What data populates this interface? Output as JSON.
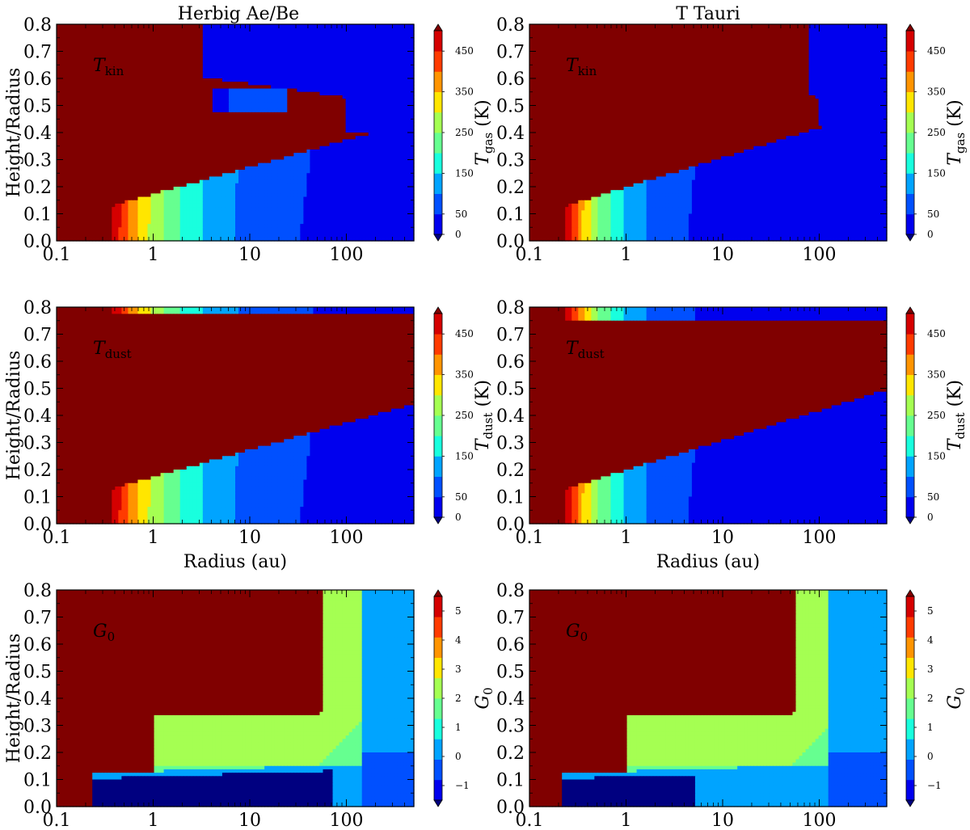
{
  "figure": {
    "column_titles": [
      "Herbig Ae/Be",
      "T Tauri"
    ],
    "row_labels": [
      "Height/Radius",
      "Height/Radius",
      "Height/Radius"
    ],
    "xlabel": "Radius (au)",
    "x_ticks": [
      "0.1",
      "1",
      "10",
      "100"
    ],
    "y_ticks": [
      "0.0",
      "0.1",
      "0.2",
      "0.3",
      "0.4",
      "0.5",
      "0.6",
      "0.7",
      "0.8"
    ]
  },
  "colors": {
    "jet_levels": [
      "#000080",
      "#0000ee",
      "#0050ff",
      "#00a4ff",
      "#19ffde",
      "#66ff90",
      "#a5ff52",
      "#ffe600",
      "#ff9400",
      "#ff3b00",
      "#d50000",
      "#800000"
    ]
  },
  "chart_data": [
    {
      "type": "heatmap",
      "panel": "herbig-tkin",
      "column": "Herbig Ae/Be",
      "annotation_base": "T",
      "annotation_sub": "kin",
      "xlim": [
        0.1,
        500
      ],
      "ylim": [
        0,
        0.8
      ],
      "xscale": "log",
      "ylabel": "Height/Radius",
      "colorbar": {
        "label_base": "T",
        "label_sub": "gas",
        "label_unit": " (K)",
        "ticks": [
          "0",
          "50",
          "150",
          "250",
          "350",
          "450"
        ],
        "range": [
          0,
          500
        ]
      },
      "surface": {
        "kind": "temp",
        "r_in": 0.35,
        "z0": 0.12,
        "slope": 0.1,
        "zcap": 0.4,
        "dT": 70,
        "tail": 0.3,
        "plume": true
      }
    },
    {
      "type": "heatmap",
      "panel": "ttauri-tkin",
      "column": "T Tauri",
      "annotation_base": "T",
      "annotation_sub": "kin",
      "xlim": [
        0.1,
        500
      ],
      "ylim": [
        0,
        0.8
      ],
      "xscale": "log",
      "ylabel": "",
      "colorbar": {
        "label_base": "T",
        "label_sub": "gas",
        "label_unit": " (K)",
        "ticks": [
          "0",
          "50",
          "150",
          "250",
          "350",
          "450"
        ],
        "range": [
          0,
          500
        ]
      },
      "surface": {
        "kind": "temp",
        "r_in": 0.23,
        "z0": 0.14,
        "slope": 0.11,
        "zcap": 0.42,
        "dT": 45,
        "tail": 0.25,
        "plume": true
      }
    },
    {
      "type": "heatmap",
      "panel": "herbig-tdust",
      "column": "Herbig Ae/Be",
      "annotation_base": "T",
      "annotation_sub": "dust",
      "xlim": [
        0.1,
        500
      ],
      "ylim": [
        0,
        0.8
      ],
      "xscale": "log",
      "ylabel": "Height/Radius",
      "xlabel": "Radius (au)",
      "colorbar": {
        "label_base": "T",
        "label_sub": "dust",
        "label_unit": " (K)",
        "ticks": [
          "0",
          "50",
          "150",
          "250",
          "350",
          "450"
        ],
        "range": [
          0,
          500
        ]
      },
      "surface": {
        "kind": "temp",
        "r_in": 0.35,
        "z0": 0.12,
        "slope": 0.1,
        "zcap": 0.32,
        "dT": 70,
        "tail": 0.3,
        "plume": false
      }
    },
    {
      "type": "heatmap",
      "panel": "ttauri-tdust",
      "column": "T Tauri",
      "annotation_base": "T",
      "annotation_sub": "dust",
      "xlim": [
        0.1,
        500
      ],
      "ylim": [
        0,
        0.8
      ],
      "xscale": "log",
      "ylabel": "",
      "xlabel": "Radius (au)",
      "colorbar": {
        "label_base": "T",
        "label_sub": "dust",
        "label_unit": " (K)",
        "ticks": [
          "0",
          "50",
          "150",
          "250",
          "350",
          "450"
        ],
        "range": [
          0,
          500
        ]
      },
      "surface": {
        "kind": "temp",
        "r_in": 0.23,
        "z0": 0.14,
        "slope": 0.11,
        "zcap": 0.3,
        "dT": 45,
        "tail": 0.25,
        "plume": false
      }
    },
    {
      "type": "heatmap",
      "panel": "herbig-g0",
      "column": "Herbig Ae/Be",
      "annotation_base": "G",
      "annotation_sub": "0",
      "xlim": [
        0.1,
        500
      ],
      "ylim": [
        0,
        0.8
      ],
      "xscale": "log",
      "ylabel": "Height/Radius",
      "colorbar": {
        "label_base": "G",
        "label_sub": "0",
        "label_unit": "",
        "ticks": [
          "−1",
          "0",
          "1",
          "2",
          "3",
          "4",
          "5"
        ],
        "range": [
          -1.5,
          5.5
        ]
      },
      "surface": {
        "kind": "g0",
        "r_in": 0.23,
        "z0": 0.11,
        "zsat": 0.16,
        "sat": 70,
        "bgR": 150
      }
    },
    {
      "type": "heatmap",
      "panel": "ttauri-g0",
      "column": "T Tauri",
      "annotation_base": "G",
      "annotation_sub": "0",
      "xlim": [
        0.1,
        500
      ],
      "ylim": [
        0,
        0.8
      ],
      "xscale": "log",
      "ylabel": "",
      "colorbar": {
        "label_base": "G",
        "label_sub": "0",
        "label_unit": "",
        "ticks": [
          "−1",
          "0",
          "1",
          "2",
          "3",
          "4",
          "5"
        ],
        "range": [
          -1.5,
          5.5
        ]
      },
      "surface": {
        "kind": "g0",
        "r_in": 0.21,
        "z0": 0.11,
        "zsat": 0.17,
        "sat": 5,
        "bgR": 120
      }
    }
  ]
}
